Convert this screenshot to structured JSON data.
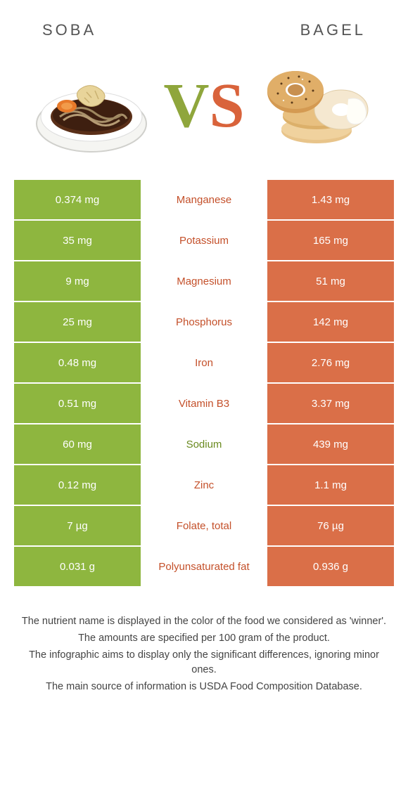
{
  "food_left": {
    "title": "SOBA",
    "color": "#8eb63f"
  },
  "food_right": {
    "title": "BAGEL",
    "color": "#da6f48"
  },
  "vs": {
    "v_color": "#8fa63c",
    "s_color": "#d9633b"
  },
  "winner_colors": {
    "left": "#6a8a1f",
    "right": "#c4502a"
  },
  "rows": [
    {
      "nutrient": "Manganese",
      "left": "0.374 mg",
      "right": "1.43 mg",
      "winner": "right"
    },
    {
      "nutrient": "Potassium",
      "left": "35 mg",
      "right": "165 mg",
      "winner": "right"
    },
    {
      "nutrient": "Magnesium",
      "left": "9 mg",
      "right": "51 mg",
      "winner": "right"
    },
    {
      "nutrient": "Phosphorus",
      "left": "25 mg",
      "right": "142 mg",
      "winner": "right"
    },
    {
      "nutrient": "Iron",
      "left": "0.48 mg",
      "right": "2.76 mg",
      "winner": "right"
    },
    {
      "nutrient": "Vitamin B3",
      "left": "0.51 mg",
      "right": "3.37 mg",
      "winner": "right"
    },
    {
      "nutrient": "Sodium",
      "left": "60 mg",
      "right": "439 mg",
      "winner": "left"
    },
    {
      "nutrient": "Zinc",
      "left": "0.12 mg",
      "right": "1.1 mg",
      "winner": "right"
    },
    {
      "nutrient": "Folate, total",
      "left": "7 µg",
      "right": "76 µg",
      "winner": "right"
    },
    {
      "nutrient": "Polyunsaturated fat",
      "left": "0.031 g",
      "right": "0.936 g",
      "winner": "right"
    }
  ],
  "footnotes": [
    "The nutrient name is displayed in the color of the food we considered as 'winner'.",
    "The amounts are specified per 100 gram of the product.",
    "The infographic aims to display only the significant differences, ignoring minor ones.",
    "The main source of information is USDA Food Composition Database."
  ]
}
